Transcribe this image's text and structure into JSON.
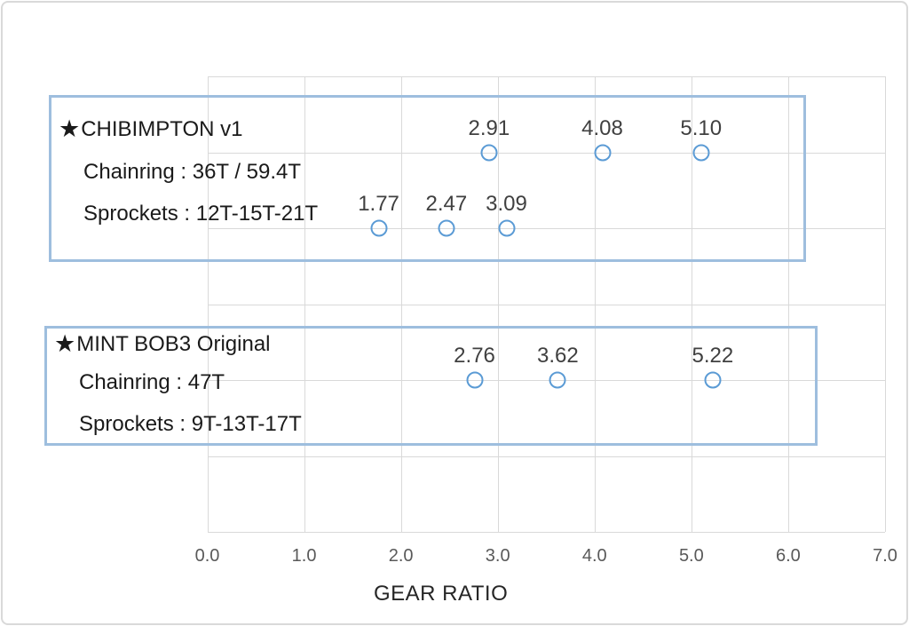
{
  "chart_data": {
    "type": "scatter",
    "title": "",
    "xlabel": "GEAR RATIO",
    "xlim": [
      0.0,
      7.0
    ],
    "x_tick_labels": [
      "0.0",
      "1.0",
      "2.0",
      "3.0",
      "4.0",
      "5.0",
      "6.0",
      "7.0"
    ],
    "grid": true,
    "legend_position": "none",
    "marker": "open-circle",
    "series": [
      {
        "name": "chibimpton-v1-upper-row",
        "row": 1,
        "points": [
          2.91,
          4.08,
          5.1
        ],
        "labels": [
          "2.91",
          "4.08",
          "5.10"
        ]
      },
      {
        "name": "chibimpton-v1-lower-row",
        "row": 2,
        "points": [
          1.77,
          2.47,
          3.09
        ],
        "labels": [
          "1.77",
          "2.47",
          "3.09"
        ]
      },
      {
        "name": "mint-bob3-original-row",
        "row": 4,
        "points": [
          2.76,
          3.62,
          5.22
        ],
        "labels": [
          "2.76",
          "3.62",
          "5.22"
        ]
      }
    ]
  },
  "boxes": [
    {
      "star": "★",
      "title": "CHIBIMPTON v1",
      "line1": "Chainring : 36T / 59.4T",
      "line2": "Sprockets : 12T-15T-21T"
    },
    {
      "star": "★",
      "title": "MINT BOB3 Original",
      "line1": "Chainring : 47T",
      "line2": "Sprockets : 9T-13T-17T"
    }
  ],
  "colors": {
    "marker": "#5b9bd5",
    "grid": "#d9d9d9",
    "box_border": "#9ebede",
    "tick_text": "#595959",
    "data_label_text": "#404040",
    "box_text": "#1a1a1a"
  }
}
